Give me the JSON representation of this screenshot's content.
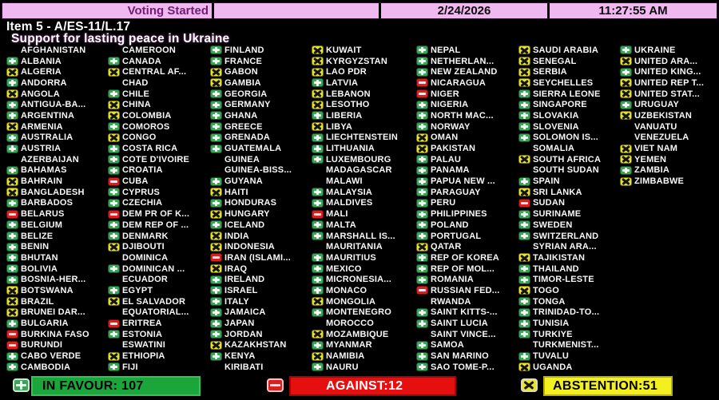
{
  "header": {
    "status": "Voting Started",
    "date": "2/24/2026",
    "time": "11:27:55 AM"
  },
  "title": {
    "line1": "Item 5 - A/ES-11/L.17",
    "line2": "Support for lasting peace in Ukraine"
  },
  "legend": {
    "Y": "in-favour",
    "A": "abstention",
    "N": "against",
    "": "no"
  },
  "colors": {
    "in_favour_green": "#1ca53a",
    "against_red": "#e60f0f",
    "abstention_yellow": "#f4ef1e",
    "header_pink": "#efb9ef",
    "background": "#000000"
  },
  "columns": [
    [
      {
        "n": "AFGHANISTAN",
        "v": ""
      },
      {
        "n": "ALBANIA",
        "v": "Y"
      },
      {
        "n": "ALGERIA",
        "v": "A"
      },
      {
        "n": "ANDORRA",
        "v": "Y"
      },
      {
        "n": "ANGOLA",
        "v": "A"
      },
      {
        "n": "ANTIGUA-BA...",
        "v": "Y"
      },
      {
        "n": "ARGENTINA",
        "v": "Y"
      },
      {
        "n": "ARMENIA",
        "v": "A"
      },
      {
        "n": "AUSTRALIA",
        "v": "Y"
      },
      {
        "n": "AUSTRIA",
        "v": "Y"
      },
      {
        "n": "AZERBAIJAN",
        "v": ""
      },
      {
        "n": "BAHAMAS",
        "v": "Y"
      },
      {
        "n": "BAHRAIN",
        "v": "A"
      },
      {
        "n": "BANGLADESH",
        "v": "A"
      },
      {
        "n": "BARBADOS",
        "v": "Y"
      },
      {
        "n": "BELARUS",
        "v": "N"
      },
      {
        "n": "BELGIUM",
        "v": "Y"
      },
      {
        "n": "BELIZE",
        "v": "Y"
      },
      {
        "n": "BENIN",
        "v": "Y"
      },
      {
        "n": "BHUTAN",
        "v": "Y"
      },
      {
        "n": "BOLIVIA",
        "v": "Y"
      },
      {
        "n": "BOSNIA-HER...",
        "v": "Y"
      },
      {
        "n": "BOTSWANA",
        "v": "A"
      },
      {
        "n": "BRAZIL",
        "v": "A"
      },
      {
        "n": "BRUNEI DAR...",
        "v": "A"
      },
      {
        "n": "BULGARIA",
        "v": "Y"
      },
      {
        "n": "BURKINA FASO",
        "v": "N"
      },
      {
        "n": "BURUNDI",
        "v": "N"
      },
      {
        "n": "CABO VERDE",
        "v": "Y"
      },
      {
        "n": "CAMBODIA",
        "v": "Y"
      }
    ],
    [
      {
        "n": "CAMEROON",
        "v": ""
      },
      {
        "n": "CANADA",
        "v": "Y"
      },
      {
        "n": "CENTRAL AF...",
        "v": "A"
      },
      {
        "n": "CHAD",
        "v": ""
      },
      {
        "n": "CHILE",
        "v": "Y"
      },
      {
        "n": "CHINA",
        "v": "A"
      },
      {
        "n": "COLOMBIA",
        "v": "A"
      },
      {
        "n": "COMOROS",
        "v": "Y"
      },
      {
        "n": "CONGO",
        "v": "A"
      },
      {
        "n": "COSTA RICA",
        "v": "Y"
      },
      {
        "n": "COTE D'IVOIRE",
        "v": "Y"
      },
      {
        "n": "CROATIA",
        "v": "Y"
      },
      {
        "n": "CUBA",
        "v": "N"
      },
      {
        "n": "CYPRUS",
        "v": "Y"
      },
      {
        "n": "CZECHIA",
        "v": "Y"
      },
      {
        "n": "DEM PR OF K...",
        "v": "N"
      },
      {
        "n": "DEM REP OF ...",
        "v": "Y"
      },
      {
        "n": "DENMARK",
        "v": "Y"
      },
      {
        "n": "DJIBOUTI",
        "v": "A"
      },
      {
        "n": "DOMINICA",
        "v": ""
      },
      {
        "n": "DOMINICAN ...",
        "v": "Y"
      },
      {
        "n": "ECUADOR",
        "v": ""
      },
      {
        "n": "EGYPT",
        "v": "Y"
      },
      {
        "n": "EL SALVADOR",
        "v": "A"
      },
      {
        "n": "EQUATORIAL...",
        "v": ""
      },
      {
        "n": "ERITREA",
        "v": "N"
      },
      {
        "n": "ESTONIA",
        "v": "Y"
      },
      {
        "n": "ESWATINI",
        "v": ""
      },
      {
        "n": "ETHIOPIA",
        "v": "A"
      },
      {
        "n": "FIJI",
        "v": "Y"
      }
    ],
    [
      {
        "n": "FINLAND",
        "v": "Y"
      },
      {
        "n": "FRANCE",
        "v": "Y"
      },
      {
        "n": "GABON",
        "v": "A"
      },
      {
        "n": "GAMBIA",
        "v": "A"
      },
      {
        "n": "GEORGIA",
        "v": "Y"
      },
      {
        "n": "GERMANY",
        "v": "Y"
      },
      {
        "n": "GHANA",
        "v": "Y"
      },
      {
        "n": "GREECE",
        "v": "Y"
      },
      {
        "n": "GRENADA",
        "v": "Y"
      },
      {
        "n": "GUATEMALA",
        "v": "Y"
      },
      {
        "n": "GUINEA",
        "v": ""
      },
      {
        "n": "GUINEA-BISS...",
        "v": ""
      },
      {
        "n": "GUYANA",
        "v": "Y"
      },
      {
        "n": "HAITI",
        "v": "A"
      },
      {
        "n": "HONDURAS",
        "v": "Y"
      },
      {
        "n": "HUNGARY",
        "v": "A"
      },
      {
        "n": "ICELAND",
        "v": "Y"
      },
      {
        "n": "INDIA",
        "v": "A"
      },
      {
        "n": "INDONESIA",
        "v": "A"
      },
      {
        "n": "IRAN (ISLAMI...",
        "v": "N"
      },
      {
        "n": "IRAQ",
        "v": "A"
      },
      {
        "n": "IRELAND",
        "v": "Y"
      },
      {
        "n": "ISRAEL",
        "v": "Y"
      },
      {
        "n": "ITALY",
        "v": "Y"
      },
      {
        "n": "JAMAICA",
        "v": "Y"
      },
      {
        "n": "JAPAN",
        "v": "Y"
      },
      {
        "n": "JORDAN",
        "v": "Y"
      },
      {
        "n": "KAZAKHSTAN",
        "v": "A"
      },
      {
        "n": "KENYA",
        "v": "Y"
      },
      {
        "n": "KIRIBATI",
        "v": ""
      }
    ],
    [
      {
        "n": "KUWAIT",
        "v": "A"
      },
      {
        "n": "KYRGYZSTAN",
        "v": "A"
      },
      {
        "n": "LAO PDR",
        "v": "A"
      },
      {
        "n": "LATVIA",
        "v": "Y"
      },
      {
        "n": "LEBANON",
        "v": "A"
      },
      {
        "n": "LESOTHO",
        "v": "A"
      },
      {
        "n": "LIBERIA",
        "v": "Y"
      },
      {
        "n": "LIBYA",
        "v": "A"
      },
      {
        "n": "LIECHTENSTEIN",
        "v": "Y"
      },
      {
        "n": "LITHUANIA",
        "v": "Y"
      },
      {
        "n": "LUXEMBOURG",
        "v": "Y"
      },
      {
        "n": "MADAGASCAR",
        "v": ""
      },
      {
        "n": "MALAWI",
        "v": ""
      },
      {
        "n": "MALAYSIA",
        "v": "Y"
      },
      {
        "n": "MALDIVES",
        "v": "Y"
      },
      {
        "n": "MALI",
        "v": "N"
      },
      {
        "n": "MALTA",
        "v": "Y"
      },
      {
        "n": "MARSHALL IS...",
        "v": "Y"
      },
      {
        "n": "MAURITANIA",
        "v": ""
      },
      {
        "n": "MAURITIUS",
        "v": "Y"
      },
      {
        "n": "MEXICO",
        "v": "Y"
      },
      {
        "n": "MICRONESIA...",
        "v": "Y"
      },
      {
        "n": "MONACO",
        "v": "Y"
      },
      {
        "n": "MONGOLIA",
        "v": "A"
      },
      {
        "n": "MONTENEGRO",
        "v": "Y"
      },
      {
        "n": "MOROCCO",
        "v": ""
      },
      {
        "n": "MOZAMBIQUE",
        "v": "A"
      },
      {
        "n": "MYANMAR",
        "v": "Y"
      },
      {
        "n": "NAMIBIA",
        "v": "A"
      },
      {
        "n": "NAURU",
        "v": "Y"
      }
    ],
    [
      {
        "n": "NEPAL",
        "v": "Y"
      },
      {
        "n": "NETHERLAN...",
        "v": "Y"
      },
      {
        "n": "NEW ZEALAND",
        "v": "Y"
      },
      {
        "n": "NICARAGUA",
        "v": "N"
      },
      {
        "n": "NIGER",
        "v": "N"
      },
      {
        "n": "NIGERIA",
        "v": "Y"
      },
      {
        "n": "NORTH MAC...",
        "v": "Y"
      },
      {
        "n": "NORWAY",
        "v": "Y"
      },
      {
        "n": "OMAN",
        "v": "A"
      },
      {
        "n": "PAKISTAN",
        "v": "A"
      },
      {
        "n": "PALAU",
        "v": "Y"
      },
      {
        "n": "PANAMA",
        "v": "Y"
      },
      {
        "n": "PAPUA NEW ...",
        "v": "Y"
      },
      {
        "n": "PARAGUAY",
        "v": "Y"
      },
      {
        "n": "PERU",
        "v": "Y"
      },
      {
        "n": "PHILIPPINES",
        "v": "Y"
      },
      {
        "n": "POLAND",
        "v": "Y"
      },
      {
        "n": "PORTUGAL",
        "v": "Y"
      },
      {
        "n": "QATAR",
        "v": "A"
      },
      {
        "n": "REP OF KOREA",
        "v": "Y"
      },
      {
        "n": "REP OF MOL...",
        "v": "Y"
      },
      {
        "n": "ROMANIA",
        "v": "Y"
      },
      {
        "n": "RUSSIAN FED...",
        "v": "N"
      },
      {
        "n": "RWANDA",
        "v": ""
      },
      {
        "n": "SAINT KITTS-...",
        "v": "Y"
      },
      {
        "n": "SAINT LUCIA",
        "v": "Y"
      },
      {
        "n": "SAINT VINCE...",
        "v": ""
      },
      {
        "n": "SAMOA",
        "v": "Y"
      },
      {
        "n": "SAN MARINO",
        "v": "Y"
      },
      {
        "n": "SAO TOME-P...",
        "v": "Y"
      }
    ],
    [
      {
        "n": "SAUDI ARABIA",
        "v": "A"
      },
      {
        "n": "SENEGAL",
        "v": "A"
      },
      {
        "n": "SERBIA",
        "v": "A"
      },
      {
        "n": "SEYCHELLES",
        "v": "A"
      },
      {
        "n": "SIERRA LEONE",
        "v": "Y"
      },
      {
        "n": "SINGAPORE",
        "v": "Y"
      },
      {
        "n": "SLOVAKIA",
        "v": "Y"
      },
      {
        "n": "SLOVENIA",
        "v": "Y"
      },
      {
        "n": "SOLOMON IS...",
        "v": "Y"
      },
      {
        "n": "SOMALIA",
        "v": ""
      },
      {
        "n": "SOUTH AFRICA",
        "v": "A"
      },
      {
        "n": "SOUTH SUDAN",
        "v": ""
      },
      {
        "n": "SPAIN",
        "v": "Y"
      },
      {
        "n": "SRI LANKA",
        "v": "A"
      },
      {
        "n": "SUDAN",
        "v": "N"
      },
      {
        "n": "SURINAME",
        "v": "Y"
      },
      {
        "n": "SWEDEN",
        "v": "Y"
      },
      {
        "n": "SWITZERLAND",
        "v": "Y"
      },
      {
        "n": "SYRIAN ARA...",
        "v": ""
      },
      {
        "n": "TAJIKISTAN",
        "v": "A"
      },
      {
        "n": "THAILAND",
        "v": "Y"
      },
      {
        "n": "TIMOR-LESTE",
        "v": "Y"
      },
      {
        "n": "TOGO",
        "v": "A"
      },
      {
        "n": "TONGA",
        "v": "Y"
      },
      {
        "n": "TRINIDAD-TO...",
        "v": "Y"
      },
      {
        "n": "TUNISIA",
        "v": "Y"
      },
      {
        "n": "TURKIYE",
        "v": "Y"
      },
      {
        "n": "TURKMENIST...",
        "v": ""
      },
      {
        "n": "TUVALU",
        "v": "Y"
      },
      {
        "n": "UGANDA",
        "v": "A"
      }
    ],
    [
      {
        "n": "UKRAINE",
        "v": "Y"
      },
      {
        "n": "UNITED ARA...",
        "v": "A"
      },
      {
        "n": "UNITED KING...",
        "v": "Y"
      },
      {
        "n": "UNITED REP T...",
        "v": "A"
      },
      {
        "n": "UNITED STAT...",
        "v": "A"
      },
      {
        "n": "URUGUAY",
        "v": "Y"
      },
      {
        "n": "UZBEKISTAN",
        "v": "A"
      },
      {
        "n": "VANUATU",
        "v": ""
      },
      {
        "n": "VENEZUELA",
        "v": ""
      },
      {
        "n": "VIET NAM",
        "v": "A"
      },
      {
        "n": "YEMEN",
        "v": "A"
      },
      {
        "n": "ZAMBIA",
        "v": "Y"
      },
      {
        "n": "ZIMBABWE",
        "v": "A"
      }
    ]
  ],
  "footer": {
    "in_favour_label": "IN FAVOUR: 107",
    "against_label": "AGAINST:12",
    "abstention_label": "ABSTENTION:51",
    "in_favour_count": 107,
    "against_count": 12,
    "abstention_count": 51
  }
}
